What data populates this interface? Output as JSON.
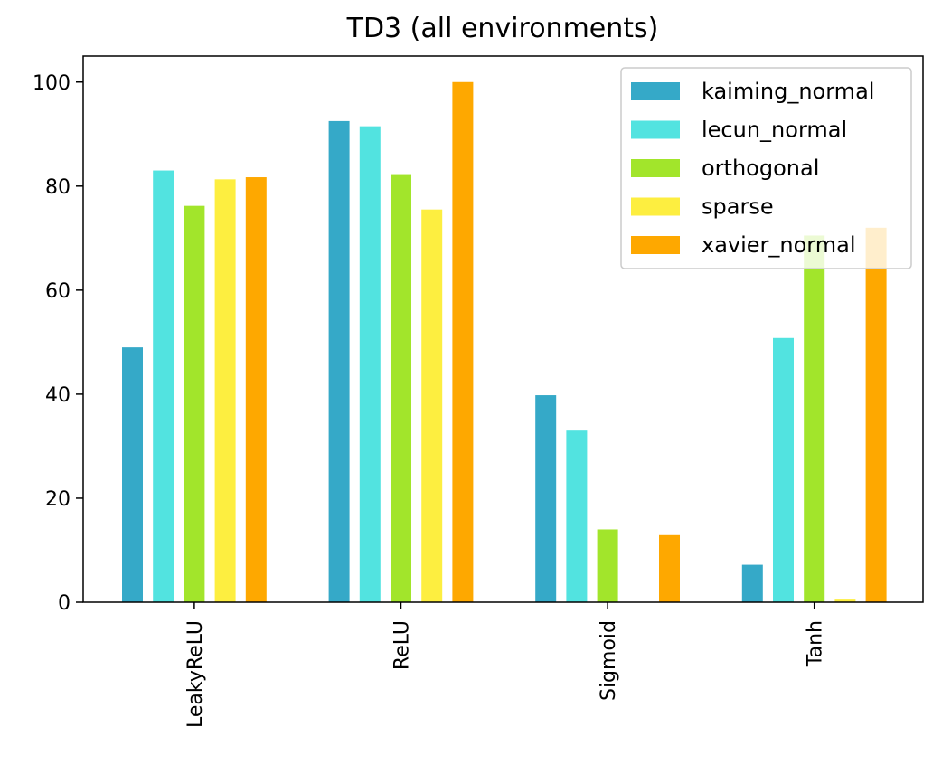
{
  "chart_data": {
    "type": "bar",
    "title": "TD3 (all environments)",
    "xlabel": "",
    "ylabel": "",
    "categories": [
      "LeakyReLU",
      "ReLU",
      "Sigmoid",
      "Tanh"
    ],
    "ylim": [
      0,
      105
    ],
    "yticks": [
      0,
      20,
      40,
      60,
      80,
      100
    ],
    "grid": false,
    "legend_position": "upper right",
    "series": [
      {
        "name": "kaiming_normal",
        "color": "#35a9c8",
        "values": [
          49,
          92.5,
          39.8,
          7.2
        ]
      },
      {
        "name": "lecun_normal",
        "color": "#52e3e0",
        "values": [
          83,
          91.5,
          33,
          50.8
        ]
      },
      {
        "name": "orthogonal",
        "color": "#a2e52b",
        "values": [
          76.2,
          82.3,
          14,
          70.5
        ]
      },
      {
        "name": "sparse",
        "color": "#fdee40",
        "values": [
          81.3,
          75.5,
          0,
          0.5
        ]
      },
      {
        "name": "xavier_normal",
        "color": "#fea800",
        "values": [
          81.7,
          100,
          12.9,
          72
        ]
      }
    ]
  }
}
